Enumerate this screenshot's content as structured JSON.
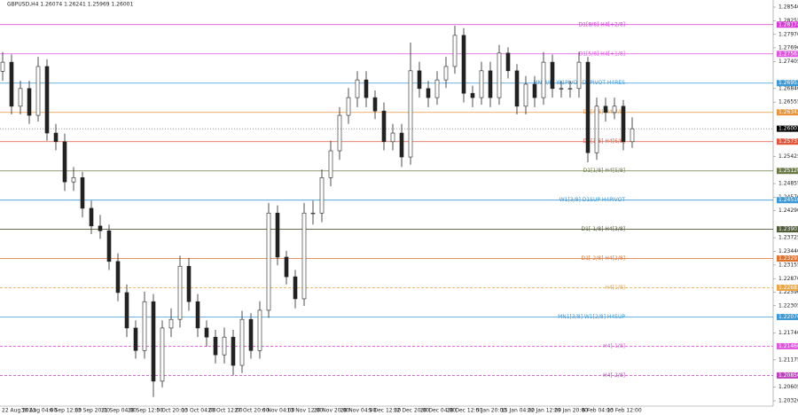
{
  "chart_data": {
    "type": "candlestick",
    "title": "GBPUSD,H4  1.26074 1.26241 1.25969 1.26001",
    "x_labels": [
      "22 Aug 2023",
      "30 Aug 04:00",
      "6 Sep 12:00",
      "13 Sep 20:00",
      "21 Sep 04:00",
      "28 Sep 12:00",
      "5 Oct 20:00",
      "13 Oct 04:00",
      "20 Oct 12:00",
      "27 Oct 20:00",
      "6 Nov 04:00",
      "13 Nov 12:00",
      "20 Nov 20:00",
      "28 Nov 04:00",
      "5 Dec 12:00",
      "12 Dec 20:00",
      "20 Dec 04:00",
      "28 Dec 12:00",
      "5 Jan 20:00",
      "15 Jan 04:00",
      "22 Jan 12:00",
      "29 Jan 20:00",
      "6 Feb 04:00",
      "13 Feb 12:00"
    ],
    "ohlc": [
      [
        1.272,
        1.276,
        1.27,
        1.2739
      ],
      [
        1.2739,
        1.2755,
        1.263,
        1.2647
      ],
      [
        1.2647,
        1.27,
        1.263,
        1.2684
      ],
      [
        1.2684,
        1.27,
        1.261,
        1.2628
      ],
      [
        1.2628,
        1.275,
        1.2615,
        1.273
      ],
      [
        1.273,
        1.2745,
        1.2575,
        1.2591
      ],
      [
        1.2591,
        1.261,
        1.2555,
        1.2573
      ],
      [
        1.2573,
        1.259,
        1.247,
        1.2489
      ],
      [
        1.2489,
        1.252,
        1.247,
        1.2498
      ],
      [
        1.2498,
        1.251,
        1.2415,
        1.2434
      ],
      [
        1.2434,
        1.245,
        1.238,
        1.2397
      ],
      [
        1.2397,
        1.242,
        1.237,
        1.2387
      ],
      [
        1.2387,
        1.24,
        1.2305,
        1.2323
      ],
      [
        1.2323,
        1.234,
        1.224,
        1.2258
      ],
      [
        1.2258,
        1.2275,
        1.2165,
        1.2184
      ],
      [
        1.2184,
        1.22,
        1.212,
        1.2137
      ],
      [
        1.2137,
        1.226,
        1.212,
        1.2239
      ],
      [
        1.2239,
        1.2255,
        1.204,
        1.2073
      ],
      [
        1.2073,
        1.22,
        1.206,
        1.2184
      ],
      [
        1.2184,
        1.2225,
        1.2165,
        1.2202
      ],
      [
        1.2202,
        1.2335,
        1.2185,
        1.2313
      ],
      [
        1.2313,
        1.233,
        1.222,
        1.2239
      ],
      [
        1.2239,
        1.2255,
        1.2165,
        1.2184
      ],
      [
        1.2184,
        1.22,
        1.2145,
        1.2165
      ],
      [
        1.2165,
        1.218,
        1.211,
        1.2128
      ],
      [
        1.2128,
        1.2185,
        1.211,
        1.2165
      ],
      [
        1.2165,
        1.218,
        1.2085,
        1.2106
      ],
      [
        1.2106,
        1.222,
        1.209,
        1.2202
      ],
      [
        1.2202,
        1.2215,
        1.212,
        1.2137
      ],
      [
        1.2137,
        1.224,
        1.212,
        1.2221
      ],
      [
        1.2221,
        1.2445,
        1.2205,
        1.2424
      ],
      [
        1.2424,
        1.244,
        1.2315,
        1.2332
      ],
      [
        1.2332,
        1.2345,
        1.2275,
        1.2291
      ],
      [
        1.2291,
        1.2305,
        1.2225,
        1.2245
      ],
      [
        1.2245,
        1.2445,
        1.223,
        1.2424
      ],
      [
        1.2424,
        1.245,
        1.24,
        1.2424
      ],
      [
        1.2424,
        1.2515,
        1.2405,
        1.2498
      ],
      [
        1.2498,
        1.2575,
        1.248,
        1.2554
      ],
      [
        1.2554,
        1.2645,
        1.2535,
        1.2628
      ],
      [
        1.2628,
        1.2685,
        1.261,
        1.2665
      ],
      [
        1.2665,
        1.272,
        1.2645,
        1.2702
      ],
      [
        1.2702,
        1.272,
        1.2645,
        1.2665
      ],
      [
        1.2665,
        1.268,
        1.262,
        1.2637
      ],
      [
        1.2637,
        1.2655,
        1.2555,
        1.2573
      ],
      [
        1.2573,
        1.261,
        1.2555,
        1.2591
      ],
      [
        1.2591,
        1.261,
        1.252,
        1.2541
      ],
      [
        1.2541,
        1.278,
        1.2525,
        1.2721
      ],
      [
        1.2721,
        1.274,
        1.2665,
        1.2684
      ],
      [
        1.2684,
        1.27,
        1.2645,
        1.2665
      ],
      [
        1.2665,
        1.272,
        1.265,
        1.2702
      ],
      [
        1.2702,
        1.275,
        1.2685,
        1.273
      ],
      [
        1.273,
        1.2815,
        1.2715,
        1.2795
      ],
      [
        1.2795,
        1.281,
        1.2655,
        1.2674
      ],
      [
        1.2674,
        1.269,
        1.2645,
        1.2665
      ],
      [
        1.2665,
        1.274,
        1.265,
        1.2721
      ],
      [
        1.2721,
        1.274,
        1.2645,
        1.2665
      ],
      [
        1.2665,
        1.2775,
        1.265,
        1.2758
      ],
      [
        1.2758,
        1.277,
        1.2705,
        1.2721
      ],
      [
        1.2721,
        1.2735,
        1.263,
        1.2647
      ],
      [
        1.2647,
        1.271,
        1.263,
        1.2693
      ],
      [
        1.2693,
        1.271,
        1.2645,
        1.2665
      ],
      [
        1.2665,
        1.276,
        1.265,
        1.2739
      ],
      [
        1.2739,
        1.2755,
        1.2665,
        1.2684
      ],
      [
        1.2684,
        1.27,
        1.2665,
        1.2684
      ],
      [
        1.2684,
        1.27,
        1.2665,
        1.2684
      ],
      [
        1.2684,
        1.276,
        1.2665,
        1.2739
      ],
      [
        1.2739,
        1.275,
        1.253,
        1.255
      ],
      [
        1.255,
        1.2665,
        1.2535,
        1.2647
      ],
      [
        1.2647,
        1.2665,
        1.2615,
        1.2634
      ],
      [
        1.2634,
        1.2665,
        1.262,
        1.2647
      ],
      [
        1.2647,
        1.266,
        1.2555,
        1.2573
      ],
      [
        1.2573,
        1.2624,
        1.256,
        1.26
      ]
    ],
    "ylim": [
      1.20209,
      1.28688
    ],
    "yticks": [
      {
        "value": 1.2854,
        "label": "1.28540"
      },
      {
        "value": 1.28255,
        "label": "1.28255"
      },
      {
        "value": 1.2797,
        "label": "1.27970"
      },
      {
        "value": 1.2769,
        "label": "1.27690"
      },
      {
        "value": 1.27405,
        "label": "1.27405"
      },
      {
        "value": 1.2684,
        "label": "1.26840"
      },
      {
        "value": 1.26555,
        "label": "1.26555"
      },
      {
        "value": 1.25425,
        "label": "1.25425"
      },
      {
        "value": 1.24855,
        "label": "1.24855"
      },
      {
        "value": 1.2457,
        "label": "1.24570"
      },
      {
        "value": 1.2429,
        "label": "1.24290"
      },
      {
        "value": 1.23725,
        "label": "1.23725"
      },
      {
        "value": 1.2344,
        "label": "1.23440"
      },
      {
        "value": 1.23155,
        "label": "1.23155"
      },
      {
        "value": 1.2287,
        "label": "1.22870"
      },
      {
        "value": 1.2259,
        "label": "1.22590"
      },
      {
        "value": 1.22305,
        "label": "1.22305"
      },
      {
        "value": 1.2174,
        "label": "1.21740"
      },
      {
        "value": 1.21175,
        "label": "1.21175"
      },
      {
        "value": 1.20605,
        "label": "1.20605"
      },
      {
        "value": 1.2032,
        "label": "1.20320"
      }
    ],
    "levels": [
      {
        "label": "D1[8/8] H4[+2/8]",
        "value": 1.28174,
        "color": "#d63ad6",
        "dashed": false
      },
      {
        "label": "D1[5/8] H4[+1/8]",
        "value": 1.27563,
        "color": "#e055e0",
        "dashed": false
      },
      {
        "label": "MN[4/8] W1PIVOT D1PIVOT H4RES",
        "value": 1.26953,
        "color": "#3d9ad8",
        "dashed": false
      },
      {
        "label": "D1[4/8] H4[7/8]",
        "value": 1.26342,
        "color": "#e8943a",
        "dashed": false
      },
      {
        "label": "D1[3/8] H4[6/8]",
        "value": 1.25731,
        "color": "#e2553a",
        "dashed": false
      },
      {
        "label": "D1[1/8] H4[5/8]",
        "value": 1.2512,
        "value_label": "1.25120",
        "color": "#6b7a45",
        "dashed": false
      },
      {
        "label": "W1[3/8] D1SUP H4PIVOT",
        "value": 1.2451,
        "value_label": "1.24510",
        "color": "#3d9ad8",
        "dashed": false
      },
      {
        "label": "D1[-1/8] H4[3/8]",
        "value": 1.23901,
        "color": "#4f5a36",
        "dashed": false
      },
      {
        "label": "D1[-2/8] H4[2/8]",
        "value": 1.23291,
        "color": "#e2702a",
        "dashed": false
      },
      {
        "label": "H4[1/8]",
        "value": 1.22681,
        "color": "#eca640",
        "dashed": true
      },
      {
        "label": "MN1[3/8] W1[2/8] H4SUP",
        "value": 1.2207,
        "value_label": "1.22070",
        "color": "#3d9ad8",
        "dashed": false
      },
      {
        "label": "H4[-1/8]",
        "value": 1.2146,
        "value_label": "1.21460",
        "color": "#e055e0",
        "dashed": true
      },
      {
        "label": "H4[-2/8]",
        "value": 1.2085,
        "value_label": "1.20850",
        "color": "#c040c0",
        "dashed": true
      }
    ],
    "current_price": {
      "value": 1.26001,
      "color": "#000000"
    },
    "up_color": "#ffffff",
    "down_color": "#222222",
    "wick_color": "#222222"
  }
}
